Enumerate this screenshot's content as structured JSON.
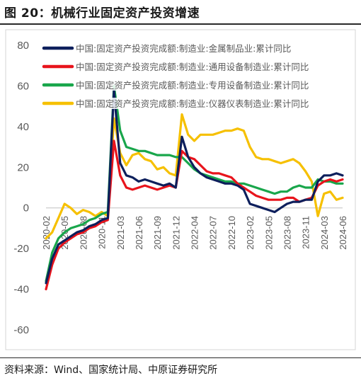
{
  "figure": {
    "title": "图 20：机械行业固定资产投资增速",
    "source": "资料来源：Wind、国家统计局、中原证券研究所"
  },
  "chart_data": {
    "type": "line",
    "ylim": [
      -60,
      80
    ],
    "yticks": [
      -60,
      -40,
      -20,
      0,
      20,
      40,
      60,
      80
    ],
    "x": [
      "2020-02",
      "2020-03",
      "2020-04",
      "2020-05",
      "2020-06",
      "2020-07",
      "2020-08",
      "2020-09",
      "2020-10",
      "2020-11",
      "2020-12",
      "2021-02",
      "2021-03",
      "2021-04",
      "2021-05",
      "2021-06",
      "2021-07",
      "2021-08",
      "2021-09",
      "2021-10",
      "2021-11",
      "2021-12",
      "2022-02",
      "2022-03",
      "2022-04",
      "2022-05",
      "2022-06",
      "2022-07",
      "2022-08",
      "2022-09",
      "2022-10",
      "2022-11",
      "2022-12",
      "2023-02",
      "2023-03",
      "2023-04",
      "2023-05",
      "2023-06",
      "2023-07",
      "2023-08",
      "2023-09",
      "2023-10",
      "2023-11",
      "2023-12",
      "2024-02",
      "2024-03",
      "2024-04",
      "2024-05",
      "2024-06"
    ],
    "xtick_labels": [
      "2020-02",
      "2020-05",
      "2020-08",
      "2020-11",
      "2021-03",
      "2021-06",
      "2021-09",
      "2021-12",
      "2022-04",
      "2022-07",
      "2022-10",
      "2023-02",
      "2023-05",
      "2023-08",
      "2023-11",
      "2024-03",
      "2024-06"
    ],
    "grid": false,
    "legend_position": "top-right",
    "series": [
      {
        "name": "中国:固定资产投资完成额:制造业:金属制品业:累计同比",
        "color": "#0d1f5c",
        "values": [
          -37,
          -25,
          -18,
          -16,
          -14,
          -12,
          -11,
          -9,
          -8,
          -6,
          -5,
          58,
          22,
          16,
          15,
          13,
          14,
          13,
          12,
          11,
          12,
          10,
          35,
          25,
          20,
          17,
          15,
          14,
          13,
          12,
          12,
          11,
          9,
          2,
          1,
          0,
          -1,
          -2,
          0,
          2,
          3,
          3,
          4,
          4,
          13,
          16,
          16,
          17,
          16
        ]
      },
      {
        "name": "中国:固定资产投资完成额:制造业:通用设备制造业:累计同比",
        "color": "#e8141c",
        "values": [
          -40,
          -28,
          -20,
          -17,
          -15,
          -13,
          -12,
          -10,
          -9,
          -7,
          -6,
          33,
          16,
          10,
          9,
          10,
          11,
          10,
          9,
          10,
          11,
          10,
          28,
          25,
          24,
          21,
          18,
          17,
          17,
          16,
          15,
          12,
          10,
          8,
          6,
          5,
          4,
          4,
          4,
          5,
          5,
          3,
          4,
          5,
          11,
          13,
          14,
          13,
          14
        ]
      },
      {
        "name": "中国:固定资产投资完成额:制造业:专用设备制造业:累计同比",
        "color": "#19a64b",
        "values": [
          -36,
          -22,
          -15,
          -12,
          -10,
          -9,
          -8,
          -6,
          -5,
          -3,
          -2,
          60,
          38,
          30,
          29,
          28,
          28,
          27,
          26,
          26,
          26,
          25,
          25,
          22,
          19,
          17,
          16,
          15,
          14,
          13,
          13,
          12,
          12,
          11,
          10,
          9,
          8,
          7,
          8,
          8,
          10,
          11,
          10,
          10,
          14,
          13,
          13,
          12,
          12
        ]
      },
      {
        "name": "中国:固定资产投资完成额:制造业:仪器仪表制造业:累计同比",
        "color": "#f6c000",
        "values": [
          -15,
          -12,
          -5,
          2,
          0,
          -3,
          -1,
          -2,
          -4,
          -2,
          -4,
          44,
          27,
          21,
          26,
          27,
          24,
          23,
          19,
          20,
          17,
          16,
          46,
          36,
          33,
          36,
          36,
          36,
          37,
          38,
          38,
          39,
          38,
          30,
          25,
          24,
          24,
          23,
          22,
          23,
          24,
          22,
          18,
          13,
          -4,
          7,
          8,
          4,
          5
        ]
      }
    ]
  }
}
